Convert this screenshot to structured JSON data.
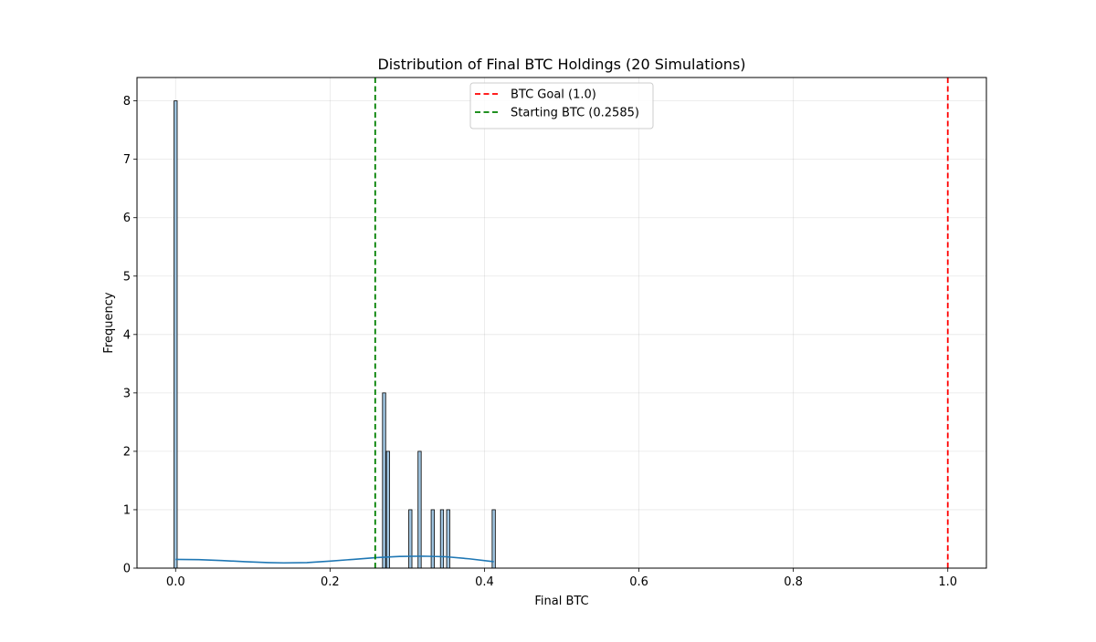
{
  "chart_data": {
    "type": "bar",
    "title": "Distribution of Final BTC Holdings (20 Simulations)",
    "xlabel": "Final BTC",
    "ylabel": "Frequency",
    "xlim": [
      -0.05,
      1.05
    ],
    "ylim": [
      0,
      8.4
    ],
    "xticks": [
      0.0,
      0.2,
      0.4,
      0.6,
      0.8,
      1.0
    ],
    "xtick_labels": [
      "0.0",
      "0.2",
      "0.4",
      "0.6",
      "0.8",
      "1.0"
    ],
    "yticks": [
      0,
      1,
      2,
      3,
      4,
      5,
      6,
      7,
      8
    ],
    "ytick_labels": [
      "0",
      "1",
      "2",
      "3",
      "4",
      "5",
      "6",
      "7",
      "8"
    ],
    "grid": true,
    "legend_position": "top-center",
    "histogram": {
      "bin_width": 0.0041,
      "bar_color": "#9fc4e0",
      "edge_color": "#000000",
      "bins": [
        {
          "x": 0.0,
          "count": 8
        },
        {
          "x": 0.27,
          "count": 3
        },
        {
          "x": 0.275,
          "count": 2
        },
        {
          "x": 0.304,
          "count": 1
        },
        {
          "x": 0.316,
          "count": 2
        },
        {
          "x": 0.333,
          "count": 1
        },
        {
          "x": 0.345,
          "count": 1
        },
        {
          "x": 0.353,
          "count": 1
        },
        {
          "x": 0.412,
          "count": 1
        }
      ]
    },
    "kde": {
      "color": "#1f77b4",
      "x": [
        0.0,
        0.03,
        0.06,
        0.09,
        0.12,
        0.14,
        0.17,
        0.2,
        0.23,
        0.26,
        0.29,
        0.32,
        0.35,
        0.38,
        0.412
      ],
      "y": [
        0.15,
        0.145,
        0.13,
        0.11,
        0.095,
        0.09,
        0.095,
        0.12,
        0.15,
        0.18,
        0.2,
        0.205,
        0.195,
        0.16,
        0.11
      ]
    },
    "reference_lines": [
      {
        "label": "BTC Goal (1.0)",
        "x": 1.0,
        "color": "#ff0000"
      },
      {
        "label": "Starting BTC (0.2585)",
        "x": 0.2585,
        "color": "#008000"
      }
    ]
  }
}
